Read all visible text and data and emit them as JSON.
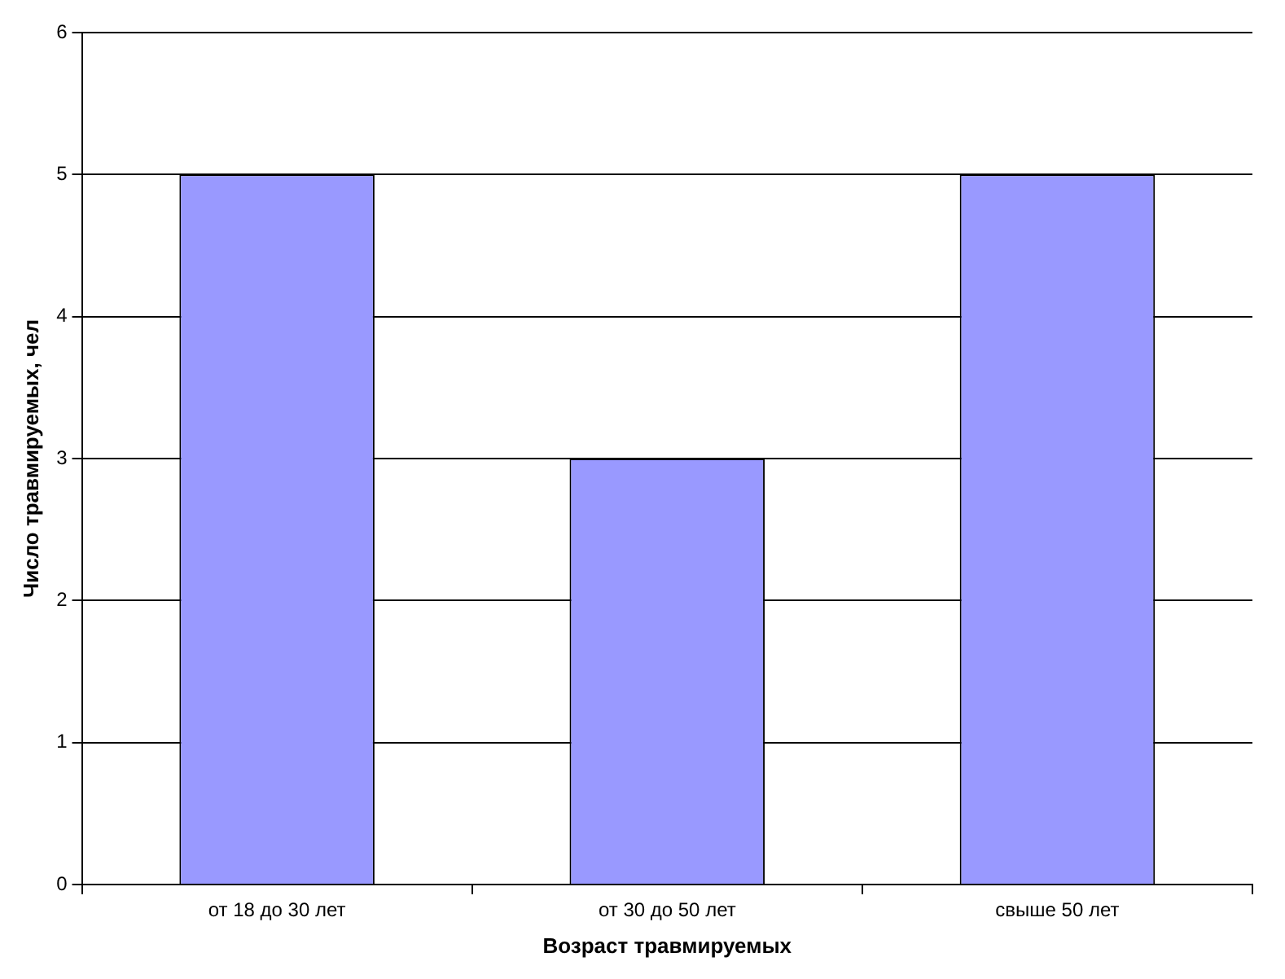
{
  "chart_data": {
    "type": "bar",
    "xlabel": "Возраст травмируемых",
    "ylabel": "Число травмируемых, чел",
    "categories": [
      "от 18 до 30 лет",
      "от 30 до 50 лет",
      "свыше 50 лет"
    ],
    "values": [
      5,
      3,
      5
    ],
    "color": "#9999ff",
    "ylim": [
      0,
      6
    ],
    "yticks": [
      0,
      1,
      2,
      3,
      4,
      5,
      6
    ],
    "grid": "y"
  }
}
